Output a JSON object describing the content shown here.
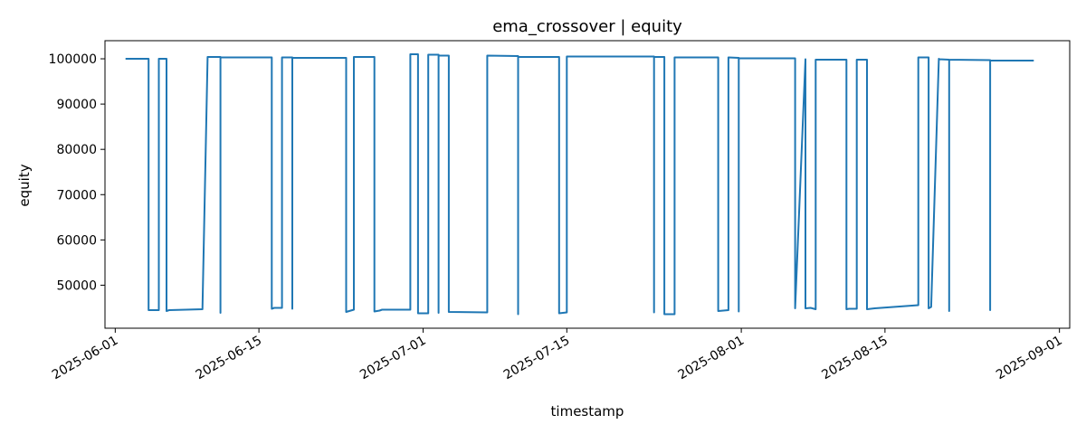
{
  "chart_data": {
    "type": "line",
    "title": "ema_crossover | equity",
    "xlabel": "timestamp",
    "ylabel": "equity",
    "x_axis": "date",
    "xlim": [
      "2025-05-31",
      "2025-09-02"
    ],
    "ylim": [
      40500,
      104000
    ],
    "x_ticks": [
      "2025-06-01",
      "2025-06-15",
      "2025-07-01",
      "2025-07-15",
      "2025-08-01",
      "2025-08-15",
      "2025-09-01"
    ],
    "y_ticks": [
      50000,
      60000,
      70000,
      80000,
      90000,
      100000
    ],
    "grid": false,
    "colors": {
      "line": "#1f77b4",
      "axes": "#000000"
    },
    "series": [
      {
        "points": [
          [
            "2025-06-02T00:00",
            100000
          ],
          [
            "2025-06-04T06:00",
            100000
          ],
          [
            "2025-06-04T06:00",
            44500
          ],
          [
            "2025-06-05T06:00",
            44500
          ],
          [
            "2025-06-05T06:00",
            100000
          ],
          [
            "2025-06-06T00:00",
            100000
          ],
          [
            "2025-06-06T00:00",
            44300
          ],
          [
            "2025-06-06T06:00",
            44500
          ],
          [
            "2025-06-09T12:00",
            44700
          ],
          [
            "2025-06-10T00:00",
            100400
          ],
          [
            "2025-06-11T06:00",
            100400
          ],
          [
            "2025-06-11T06:00",
            43900
          ],
          [
            "2025-06-11T06:00",
            100300
          ],
          [
            "2025-06-16T06:00",
            100300
          ],
          [
            "2025-06-16T06:00",
            44800
          ],
          [
            "2025-06-16T12:00",
            45000
          ],
          [
            "2025-06-17T06:00",
            45000
          ],
          [
            "2025-06-17T06:00",
            100300
          ],
          [
            "2025-06-18T06:00",
            100300
          ],
          [
            "2025-06-18T06:00",
            44800
          ],
          [
            "2025-06-18T06:00",
            100200
          ],
          [
            "2025-06-23T12:00",
            100200
          ],
          [
            "2025-06-23T12:00",
            44100
          ],
          [
            "2025-06-24T06:00",
            44600
          ],
          [
            "2025-06-24T06:00",
            100400
          ],
          [
            "2025-06-26T06:00",
            100400
          ],
          [
            "2025-06-26T06:00",
            44200
          ],
          [
            "2025-06-26T18:00",
            44400
          ],
          [
            "2025-06-27T00:00",
            44600
          ],
          [
            "2025-06-29T18:00",
            44600
          ],
          [
            "2025-06-29T18:00",
            101000
          ],
          [
            "2025-06-30T12:00",
            101000
          ],
          [
            "2025-06-30T12:00",
            43800
          ],
          [
            "2025-07-01T12:00",
            43800
          ],
          [
            "2025-07-01T12:00",
            100900
          ],
          [
            "2025-07-02T12:00",
            100900
          ],
          [
            "2025-07-02T12:00",
            43900
          ],
          [
            "2025-07-02T12:00",
            100700
          ],
          [
            "2025-07-03T12:00",
            100700
          ],
          [
            "2025-07-03T12:00",
            44100
          ],
          [
            "2025-07-07T06:00",
            44000
          ],
          [
            "2025-07-07T06:00",
            100700
          ],
          [
            "2025-07-10T06:00",
            100600
          ],
          [
            "2025-07-10T06:00",
            43600
          ],
          [
            "2025-07-10T06:00",
            100400
          ],
          [
            "2025-07-14T06:00",
            100400
          ],
          [
            "2025-07-14T06:00",
            43800
          ],
          [
            "2025-07-15T00:00",
            44000
          ],
          [
            "2025-07-15T00:00",
            100500
          ],
          [
            "2025-07-23T12:00",
            100500
          ],
          [
            "2025-07-23T12:00",
            44000
          ],
          [
            "2025-07-23T12:00",
            100400
          ],
          [
            "2025-07-24T12:00",
            100400
          ],
          [
            "2025-07-24T12:00",
            43600
          ],
          [
            "2025-07-25T12:00",
            43600
          ],
          [
            "2025-07-25T12:00",
            100300
          ],
          [
            "2025-07-29T18:00",
            100300
          ],
          [
            "2025-07-29T18:00",
            44300
          ],
          [
            "2025-07-30T18:00",
            44500
          ],
          [
            "2025-07-30T18:00",
            100300
          ],
          [
            "2025-07-31T18:00",
            100200
          ],
          [
            "2025-07-31T18:00",
            44200
          ],
          [
            "2025-07-31T18:00",
            100100
          ],
          [
            "2025-08-06T06:00",
            100100
          ],
          [
            "2025-08-06T06:00",
            44900
          ],
          [
            "2025-08-07T06:00",
            99900
          ],
          [
            "2025-08-07T06:00",
            44900
          ],
          [
            "2025-08-07T18:00",
            45000
          ],
          [
            "2025-08-08T06:00",
            44700
          ],
          [
            "2025-08-08T06:00",
            99800
          ],
          [
            "2025-08-11T06:00",
            99800
          ],
          [
            "2025-08-11T06:00",
            44700
          ],
          [
            "2025-08-11T12:00",
            44800
          ],
          [
            "2025-08-12T06:00",
            44800
          ],
          [
            "2025-08-12T06:00",
            99800
          ],
          [
            "2025-08-13T06:00",
            99800
          ],
          [
            "2025-08-13T06:00",
            44700
          ],
          [
            "2025-08-14T00:00",
            44900
          ],
          [
            "2025-08-18T06:00",
            45600
          ],
          [
            "2025-08-18T06:00",
            100300
          ],
          [
            "2025-08-19T06:00",
            100300
          ],
          [
            "2025-08-19T06:00",
            44900
          ],
          [
            "2025-08-19T12:00",
            45200
          ],
          [
            "2025-08-20T06:00",
            100000
          ],
          [
            "2025-08-20T06:00",
            99900
          ],
          [
            "2025-08-21T06:00",
            99800
          ],
          [
            "2025-08-21T06:00",
            44300
          ],
          [
            "2025-08-21T06:00",
            99800
          ],
          [
            "2025-08-25T06:00",
            99700
          ],
          [
            "2025-08-25T06:00",
            44500
          ],
          [
            "2025-08-25T06:00",
            99600
          ],
          [
            "2025-08-29T12:00",
            99600
          ]
        ]
      }
    ]
  }
}
